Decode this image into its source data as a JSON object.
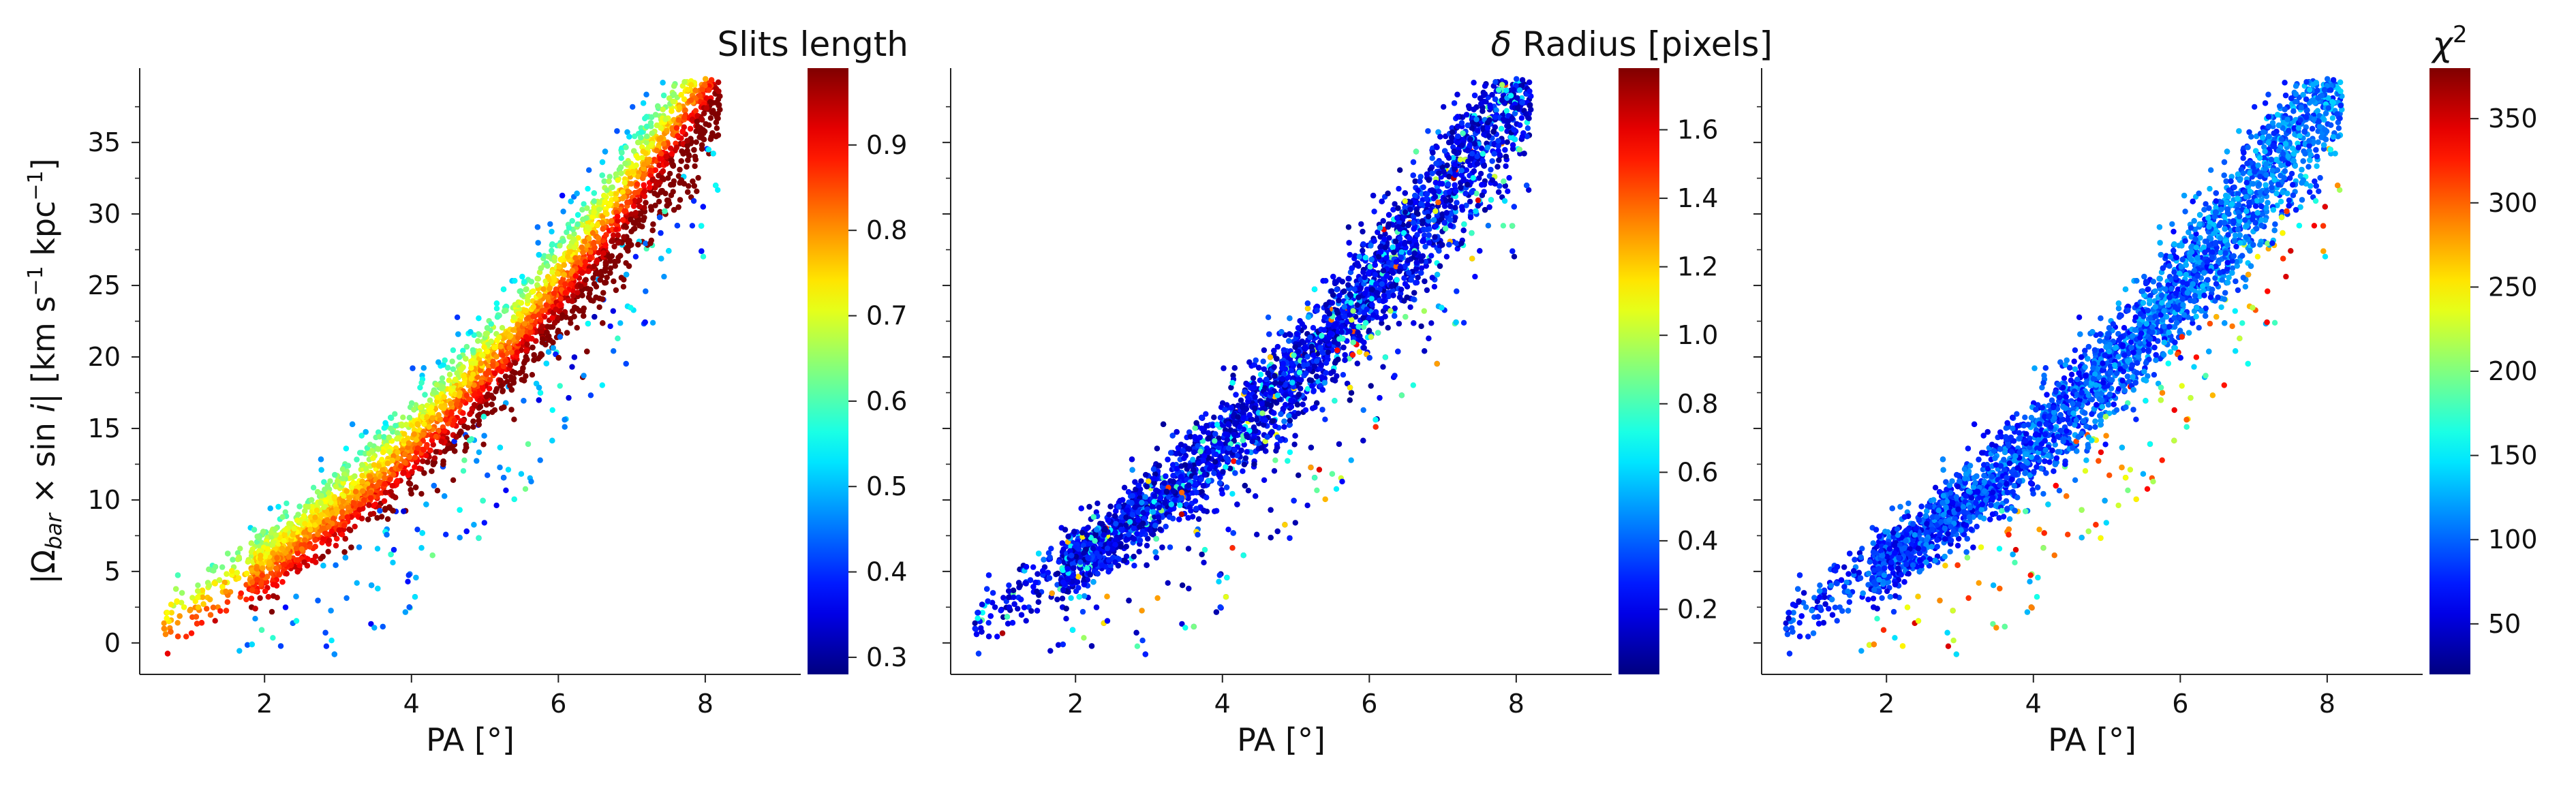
{
  "figure": {
    "colormap": "jet"
  },
  "chart_data": [
    {
      "type": "scatter",
      "xlabel": "PA [°]",
      "ylabel": "|Ω_bar × sin i|  [km s⁻¹ kpc⁻¹]",
      "ylabel_parts": [
        "|Ω",
        "bar",
        " × sin ",
        "i",
        "|   [km s",
        "−1",
        " kpc",
        "−1",
        "]"
      ],
      "xlim": [
        0.3,
        9.3
      ],
      "ylim": [
        -2.2,
        40.2
      ],
      "xticks": [
        2,
        4,
        6,
        8
      ],
      "yticks": [
        0,
        5,
        10,
        15,
        20,
        25,
        30,
        35
      ],
      "colorbar": {
        "title": "Slits length",
        "range": [
          0.28,
          0.99
        ],
        "ticks": [
          0.3,
          0.4,
          0.5,
          0.6,
          0.7,
          0.8,
          0.9
        ]
      },
      "color_trend": "high values (0.9+) along lower-right edge of the band, lower values (0.3–0.6) in scattered outliers below the band",
      "band": {
        "x_range": [
          0.6,
          8.4
        ],
        "y_at_x": [
          [
            1,
            2.5
          ],
          [
            2,
            8
          ],
          [
            3,
            12
          ],
          [
            4,
            16.5
          ],
          [
            5,
            21.5
          ],
          [
            6,
            27
          ],
          [
            7,
            32.5
          ],
          [
            8,
            38
          ]
        ]
      },
      "n_points_shown": 6000
    },
    {
      "type": "scatter",
      "xlabel": "PA [°]",
      "ylabel": "",
      "xlim": [
        0.3,
        9.3
      ],
      "ylim": [
        -2.2,
        40.2
      ],
      "xticks": [
        2,
        4,
        6,
        8
      ],
      "yticks": [],
      "colorbar": {
        "title": "δ Radius [pixels]",
        "title_parts": [
          "δ",
          " Radius [pixels]"
        ],
        "range": [
          0.01,
          1.78
        ],
        "ticks": [
          0.2,
          0.4,
          0.6,
          0.8,
          1.0,
          1.2,
          1.4,
          1.6
        ]
      },
      "color_trend": "mostly low values (<0.3), with a few scattered points at 0.5–1.7",
      "band": {
        "x_range": [
          0.6,
          8.4
        ],
        "y_at_x": [
          [
            1,
            2.5
          ],
          [
            2,
            8
          ],
          [
            3,
            12
          ],
          [
            4,
            16.5
          ],
          [
            5,
            21.5
          ],
          [
            6,
            27
          ],
          [
            7,
            32.5
          ],
          [
            8,
            38
          ]
        ]
      },
      "n_points_shown": 6000
    },
    {
      "type": "scatter",
      "xlabel": "PA [°]",
      "ylabel": "",
      "xlim": [
        0.3,
        9.3
      ],
      "ylim": [
        -2.2,
        40.2
      ],
      "xticks": [
        2,
        4,
        6,
        8
      ],
      "yticks": [],
      "colorbar": {
        "title": "χ²",
        "title_parts": [
          "χ",
          "2"
        ],
        "range": [
          20,
          380
        ],
        "ticks": [
          50,
          100,
          150,
          200,
          250,
          300,
          350
        ]
      },
      "color_trend": "most points 40–110; outliers below the band reach 150–350",
      "band": {
        "x_range": [
          0.6,
          8.4
        ],
        "y_at_x": [
          [
            1,
            2.5
          ],
          [
            2,
            8
          ],
          [
            3,
            12
          ],
          [
            4,
            16.5
          ],
          [
            5,
            21.5
          ],
          [
            6,
            27
          ],
          [
            7,
            32.5
          ],
          [
            8,
            38
          ]
        ]
      },
      "n_points_shown": 6000
    }
  ]
}
